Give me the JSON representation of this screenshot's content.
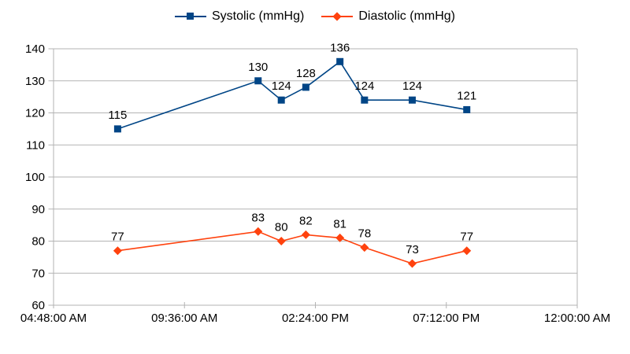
{
  "chart_data": {
    "type": "line",
    "title": "",
    "legend_position": "top",
    "grid": "horizontal",
    "x_axis": {
      "tick_labels": [
        "04:48:00 AM",
        "09:36:00 AM",
        "02:24:00 PM",
        "07:12:00 PM",
        "12:00:00 AM"
      ],
      "tick_hours": [
        4.8,
        9.6,
        14.4,
        19.2,
        24
      ],
      "min_hours": 4.8,
      "max_hours": 24
    },
    "y_axis": {
      "min": 60,
      "max": 140,
      "step": 10,
      "tick_labels": [
        "60",
        "70",
        "80",
        "90",
        "100",
        "110",
        "120",
        "130",
        "140"
      ]
    },
    "points_x_hours_estimated": [
      7.15,
      12.3,
      13.15,
      14.05,
      15.3,
      16.2,
      17.95,
      19.95
    ],
    "series": [
      {
        "name": "Systolic (mmHg)",
        "color": "#004586",
        "marker": "square",
        "values": [
          115,
          130,
          124,
          128,
          136,
          124,
          124,
          121
        ]
      },
      {
        "name": "Diastolic (mmHg)",
        "color": "#FF420E",
        "marker": "diamond",
        "values": [
          77,
          83,
          80,
          82,
          81,
          78,
          73,
          77
        ]
      }
    ],
    "data_labels_shown": true,
    "colors": {
      "grid": "#b3b3b3",
      "axis": "#b3b3b3",
      "text": "#000000",
      "background": "#ffffff"
    }
  }
}
